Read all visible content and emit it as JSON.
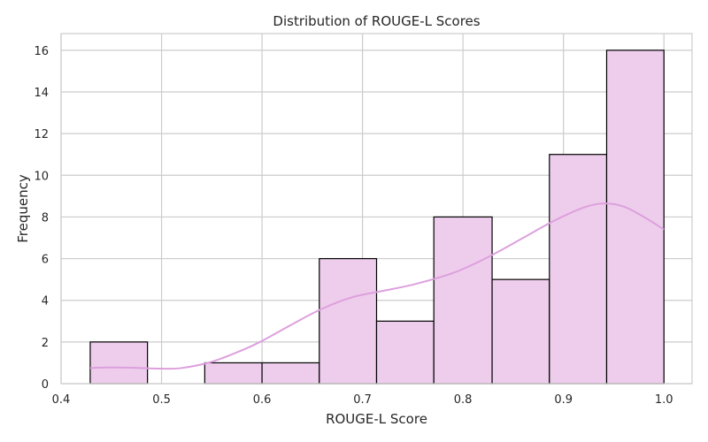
{
  "chart_data": {
    "type": "histogram",
    "title": "Distribution of ROUGE-L Scores",
    "xlabel": "ROUGE-L Score",
    "ylabel": "Frequency",
    "xlim": [
      0.4,
      1.028
    ],
    "ylim": [
      0,
      16.8
    ],
    "grid": true,
    "x_ticks": [
      0.4,
      0.5,
      0.6,
      0.7,
      0.8,
      0.9,
      1.0
    ],
    "x_tick_labels": [
      "0.4",
      "0.5",
      "0.6",
      "0.7",
      "0.8",
      "0.9",
      "1.0"
    ],
    "y_ticks": [
      0,
      2,
      4,
      6,
      8,
      10,
      12,
      14,
      16
    ],
    "y_tick_labels": [
      "0",
      "2",
      "4",
      "6",
      "8",
      "10",
      "12",
      "14",
      "16"
    ],
    "bins": [
      {
        "x0": 0.429,
        "x1": 0.486,
        "count": 2
      },
      {
        "x0": 0.486,
        "x1": 0.543,
        "count": 0
      },
      {
        "x0": 0.543,
        "x1": 0.6,
        "count": 1
      },
      {
        "x0": 0.6,
        "x1": 0.657,
        "count": 1
      },
      {
        "x0": 0.657,
        "x1": 0.714,
        "count": 6
      },
      {
        "x0": 0.714,
        "x1": 0.771,
        "count": 3
      },
      {
        "x0": 0.771,
        "x1": 0.829,
        "count": 8
      },
      {
        "x0": 0.829,
        "x1": 0.886,
        "count": 5
      },
      {
        "x0": 0.886,
        "x1": 0.943,
        "count": 11
      },
      {
        "x0": 0.943,
        "x1": 1.0,
        "count": 16
      }
    ],
    "kde": {
      "x": [
        0.429,
        0.45,
        0.48,
        0.5,
        0.52,
        0.55,
        0.58,
        0.6,
        0.63,
        0.66,
        0.69,
        0.72,
        0.75,
        0.78,
        0.8,
        0.83,
        0.86,
        0.89,
        0.92,
        0.94,
        0.96,
        0.98,
        1.0
      ],
      "y": [
        0.75,
        0.78,
        0.75,
        0.72,
        0.75,
        1.05,
        1.6,
        2.05,
        2.85,
        3.6,
        4.15,
        4.45,
        4.75,
        5.15,
        5.5,
        6.2,
        7.0,
        7.8,
        8.45,
        8.65,
        8.5,
        8.0,
        7.4
      ]
    },
    "colors": {
      "bar_fill": "#eecdec",
      "bar_edge": "#000000",
      "kde_line": "#dda0dd",
      "grid": "#cccccc",
      "frame": "#cccccc"
    }
  }
}
